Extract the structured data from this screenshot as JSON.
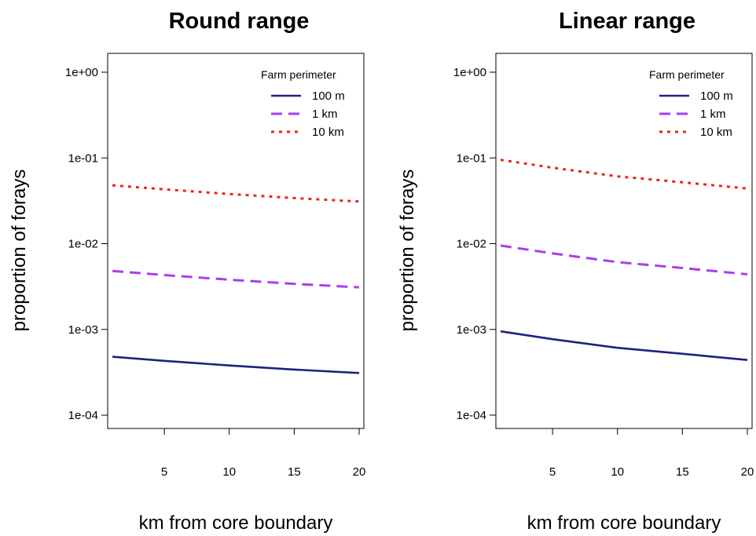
{
  "chart_data": [
    {
      "type": "line",
      "title": "Round range",
      "xlabel": "km from core boundary",
      "ylabel": "proportion of forays",
      "yscale": "log",
      "xlim": [
        1,
        20
      ],
      "ylim": [
        0.0001,
        1
      ],
      "xticks": [
        5,
        10,
        15,
        20
      ],
      "yticks": [
        1,
        0.1,
        0.01,
        0.001,
        0.0001
      ],
      "ytick_labels": [
        "1e+00",
        "1e-01",
        "1e-02",
        "1e-03",
        "1e-04"
      ],
      "legend": {
        "title": "Farm perimeter",
        "position": "top-right"
      },
      "x": [
        1,
        5,
        10,
        15,
        20
      ],
      "series": [
        {
          "name": "100 m",
          "style": "solid",
          "color": "#1a237e",
          "values": [
            0.00048,
            0.00043,
            0.00038,
            0.00034,
            0.00031
          ]
        },
        {
          "name": "1 km",
          "style": "dashed",
          "color": "#a93ef0",
          "values": [
            0.0048,
            0.0043,
            0.0038,
            0.0034,
            0.0031
          ]
        },
        {
          "name": "10 km",
          "style": "dotted",
          "color": "#ee2222",
          "values": [
            0.048,
            0.043,
            0.038,
            0.034,
            0.031
          ]
        }
      ]
    },
    {
      "type": "line",
      "title": "Linear range",
      "xlabel": "km from core boundary",
      "ylabel": "proportion of forays",
      "yscale": "log",
      "xlim": [
        1,
        20
      ],
      "ylim": [
        0.0001,
        1
      ],
      "xticks": [
        5,
        10,
        15,
        20
      ],
      "yticks": [
        1,
        0.1,
        0.01,
        0.001,
        0.0001
      ],
      "ytick_labels": [
        "1e+00",
        "1e-01",
        "1e-02",
        "1e-03",
        "1e-04"
      ],
      "legend": {
        "title": "Farm perimeter",
        "position": "top-right"
      },
      "x": [
        1,
        5,
        10,
        15,
        20
      ],
      "series": [
        {
          "name": "100 m",
          "style": "solid",
          "color": "#1a237e",
          "values": [
            0.00095,
            0.00077,
            0.00061,
            0.00052,
            0.00044
          ]
        },
        {
          "name": "1 km",
          "style": "dashed",
          "color": "#a93ef0",
          "values": [
            0.0095,
            0.0077,
            0.0061,
            0.0052,
            0.0044
          ]
        },
        {
          "name": "10 km",
          "style": "dotted",
          "color": "#ee2222",
          "values": [
            0.095,
            0.077,
            0.061,
            0.052,
            0.044
          ]
        }
      ]
    }
  ]
}
